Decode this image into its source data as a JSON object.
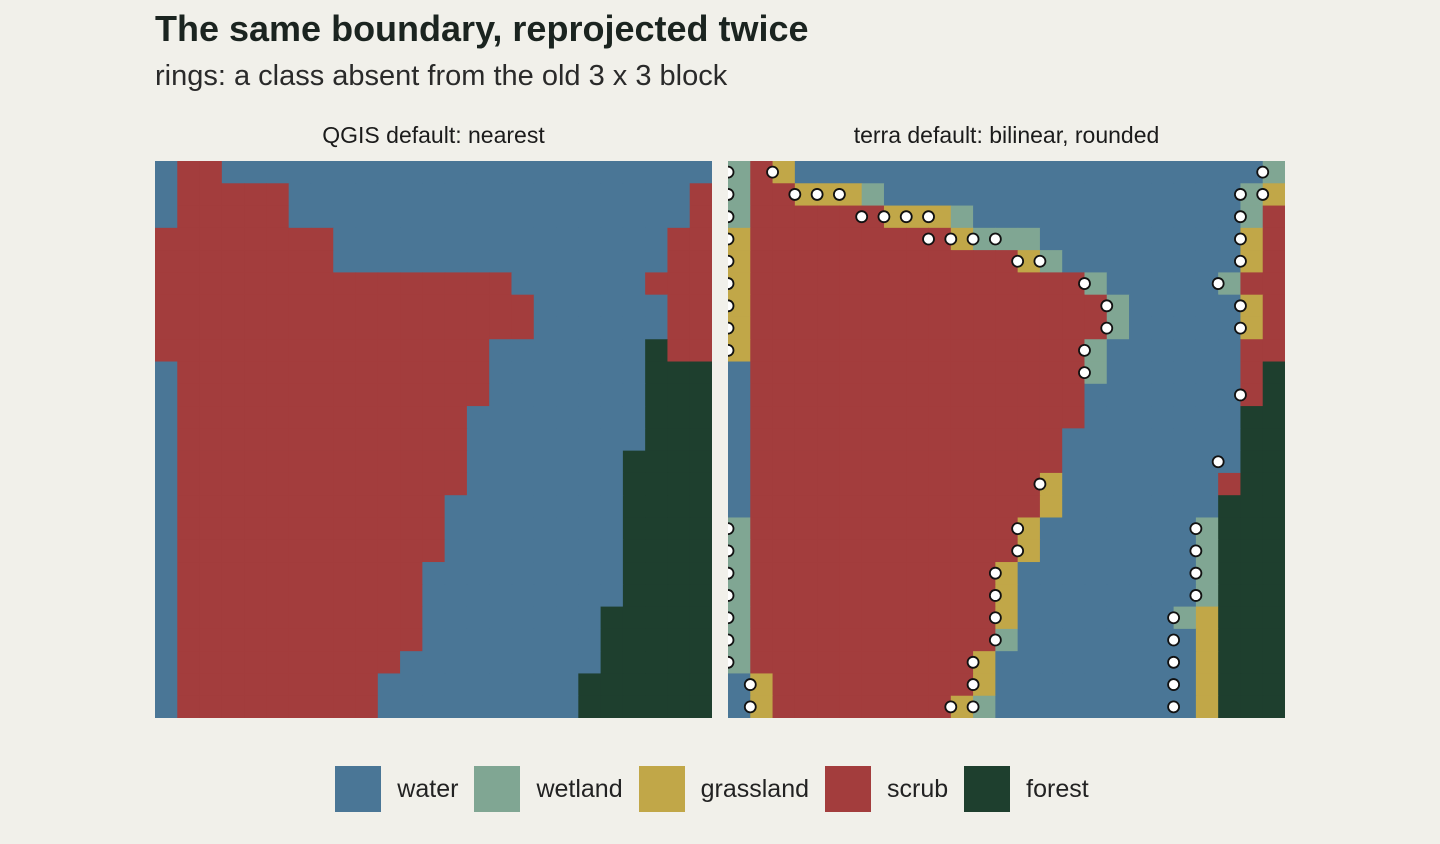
{
  "title": "The same boundary, reprojected twice",
  "subtitle": "rings: a class absent from the old 3 x 3 block",
  "colors": {
    "water": "#4a7696",
    "wetland": "#80a693",
    "grassland": "#c1a748",
    "scrub": "#a33d3d",
    "forest": "#1e3f2e",
    "ring_fill": "#ffffff",
    "ring_stroke": "#111111",
    "background": "#f1f0ea"
  },
  "legend": [
    {
      "key": "water",
      "label": "water"
    },
    {
      "key": "wetland",
      "label": "wetland"
    },
    {
      "key": "grassland",
      "label": "grassland"
    },
    {
      "key": "scrub",
      "label": "scrub"
    },
    {
      "key": "forest",
      "label": "forest"
    }
  ],
  "chart_data": {
    "type": "heatmap",
    "grid_size": [
      25,
      25
    ],
    "codes": {
      "W": "water",
      "T": "wetland",
      "G": "grassland",
      "S": "scrub",
      "F": "forest"
    },
    "panels": [
      {
        "title": "QGIS default: nearest",
        "rows": [
          "WSSWWWWWWWWWWWWWWWWWWWWWW",
          "WSSSSSWWWWWWWWWWWWWWWWWWS",
          "WSSSSSWWWWWWWWWWWWWWWWWWS",
          "SSSSSSSSWWWWWWWWWWWWWWWSS",
          "SSSSSSSSWWWWWWWWWWWWWWWSS",
          "SSSSSSSSSSSSSSSSWWWWWWSSS",
          "SSSSSSSSSSSSSSSSSWWWWWWSS",
          "SSSSSSSSSSSSSSSSSWWWWWWSS",
          "SSSSSSSSSSSSSSSWWWWWWWFSS",
          "WSSSSSSSSSSSSSSWWWWWWWFFF",
          "WSSSSSSSSSSSSSSWWWWWWWFFF",
          "WSSSSSSSSSSSSSWWWWWWWWFFF",
          "WSSSSSSSSSSSSSWWWWWWWWFFF",
          "WSSSSSSSSSSSSSWWWWWWWFFFF",
          "WSSSSSSSSSSSSSWWWWWWWFFFF",
          "WSSSSSSSSSSSSWWWWWWWWFFFF",
          "WSSSSSSSSSSSSWWWWWWWWFFFF",
          "WSSSSSSSSSSSSWWWWWWWWFFFF",
          "WSSSSSSSSSSSWWWWWWWWWFFFF",
          "WSSSSSSSSSSSWWWWWWWWWFFFF",
          "WSSSSSSSSSSSWWWWWWWWFFFFF",
          "WSSSSSSSSSSSWWWWWWWWFFFFF",
          "WSSSSSSSSSSWWWWWWWWWFFFFF",
          "WSSSSSSSSSWWWWWWWWWFFFFFF",
          "WSSSSSSSSSWWWWWWWWWFFFFFF"
        ]
      },
      {
        "title": "terra default: bilinear, rounded",
        "rows": [
          "TSGWWWWWWWWWWWWWWWWWWWWWT",
          "TSSGGGTWWWWWWWWWWWWWWWWTG",
          "TSSSSSSGGGTWWWWWWWWWWWWTS",
          "GSSSSSSSSSGTTTWWWWWWWWWGS",
          "GSSSSSSSSSSSSGTWWWWWWWWGS",
          "GSSSSSSSSSSSSSSSTWWWWWTSS",
          "GSSSSSSSSSSSSSSSSTWWWWWGS",
          "GSSSSSSSSSSSSSSSSTWWWWWGS",
          "GSSSSSSSSSSSSSSSTWWWWWWSS",
          "WSSSSSSSSSSSSSSSTWWWWWWSF",
          "WSSSSSSSSSSSSSSSWWWWWWWSF",
          "WSSSSSSSSSSSSSSSWWWWWWWFF",
          "WSSSSSSSSSSSSSSWWWWWWWWFF",
          "WSSSSSSSSSSSSSSWWWWWWWWFF",
          "WSSSSSSSSSSSSSGWWWWWWWSFF",
          "WSSSSSSSSSSSSSGWWWWWWWFFF",
          "TSSSSSSSSSSSSGWWWWWWWTFFF",
          "TSSSSSSSSSSSSGWWWWWWWTFFF",
          "TSSSSSSSSSSSGWWWWWWWWTFFF",
          "TSSSSSSSSSSSGWWWWWWWWTFFF",
          "TSSSSSSSSSSSGWWWWWWWTGFFF",
          "TSSSSSSSSSSSTWWWWWWWWGFFF",
          "TSSSSSSSSSSGWWWWWWWWWGFFF",
          "WGSSSSSSSSSGWWWWWWWWWGFFF",
          "WGSSSSSSSSGTWWWWWWWWWGFFF"
        ],
        "rings": [
          [
            0,
            0
          ],
          [
            1,
            0
          ],
          [
            1,
            3
          ],
          [
            1,
            4
          ],
          [
            1,
            5
          ],
          [
            2,
            6
          ],
          [
            2,
            7
          ],
          [
            2,
            8
          ],
          [
            2,
            9
          ],
          [
            3,
            9
          ],
          [
            3,
            10
          ],
          [
            3,
            11
          ],
          [
            3,
            12
          ],
          [
            4,
            13
          ],
          [
            4,
            14
          ],
          [
            5,
            16
          ],
          [
            6,
            17
          ],
          [
            7,
            17
          ],
          [
            8,
            16
          ],
          [
            9,
            16
          ],
          [
            0,
            24
          ],
          [
            1,
            24
          ],
          [
            1,
            23
          ],
          [
            2,
            23
          ],
          [
            3,
            23
          ],
          [
            4,
            23
          ],
          [
            5,
            22
          ],
          [
            6,
            23
          ],
          [
            7,
            23
          ],
          [
            10,
            23
          ],
          [
            2,
            0
          ],
          [
            3,
            0
          ],
          [
            4,
            0
          ],
          [
            5,
            0
          ],
          [
            6,
            0
          ],
          [
            7,
            0
          ],
          [
            8,
            0
          ],
          [
            13,
            22
          ],
          [
            14,
            14
          ],
          [
            16,
            0
          ],
          [
            17,
            0
          ],
          [
            18,
            0
          ],
          [
            19,
            0
          ],
          [
            20,
            0
          ],
          [
            21,
            0
          ],
          [
            22,
            0
          ],
          [
            16,
            13
          ],
          [
            17,
            13
          ],
          [
            18,
            12
          ],
          [
            19,
            12
          ],
          [
            20,
            12
          ],
          [
            21,
            12
          ],
          [
            22,
            11
          ],
          [
            23,
            11
          ],
          [
            24,
            10
          ],
          [
            24,
            11
          ],
          [
            16,
            21
          ],
          [
            17,
            21
          ],
          [
            18,
            21
          ],
          [
            19,
            21
          ],
          [
            20,
            20
          ],
          [
            21,
            20
          ],
          [
            22,
            20
          ],
          [
            23,
            20
          ],
          [
            24,
            20
          ],
          [
            23,
            1
          ],
          [
            24,
            1
          ],
          [
            0,
            2
          ]
        ]
      }
    ]
  }
}
